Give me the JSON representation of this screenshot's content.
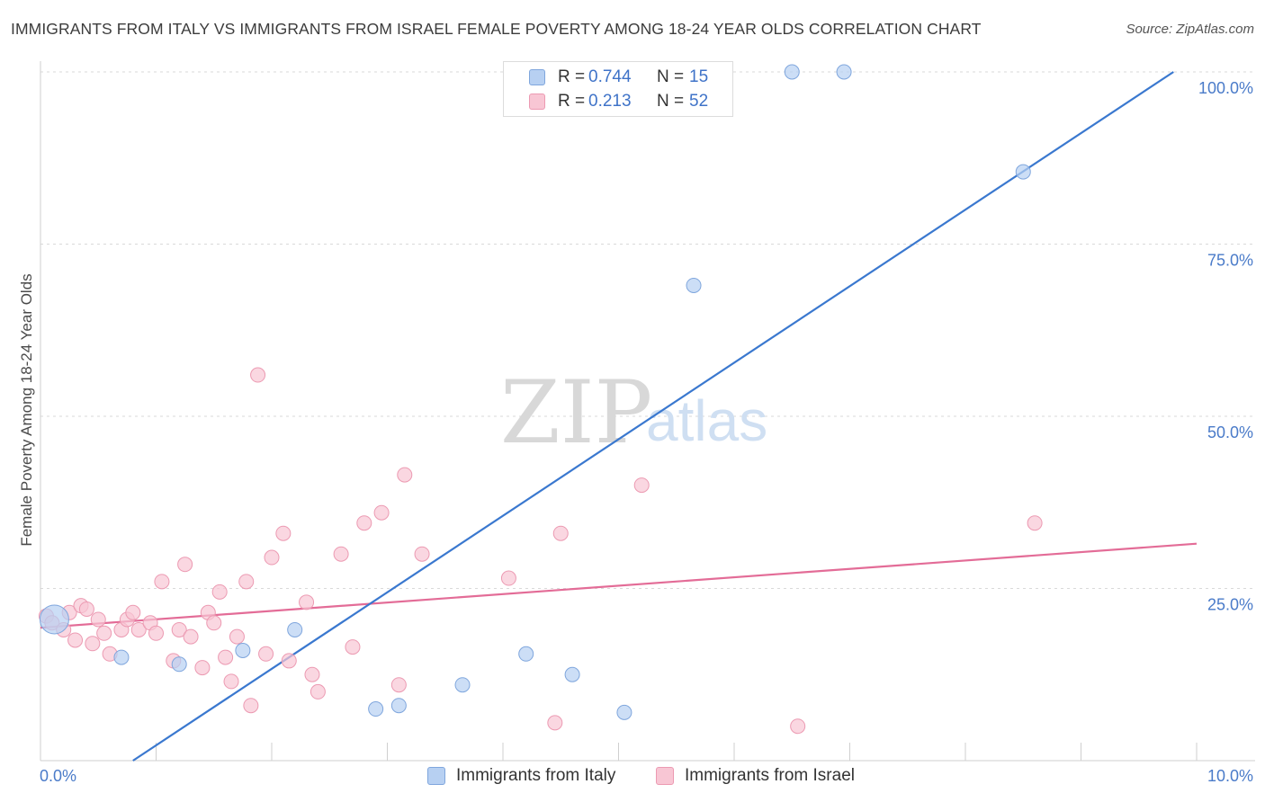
{
  "title": "IMMIGRANTS FROM ITALY VS IMMIGRANTS FROM ISRAEL FEMALE POVERTY AMONG 18-24 YEAR OLDS CORRELATION CHART",
  "source": "Source: ZipAtlas.com",
  "watermark": {
    "zip": "ZIP",
    "atlas": "atlas"
  },
  "legend": {
    "italy": {
      "r_label": "R =",
      "r_value": "0.744",
      "n_label": "N =",
      "n_value": "15"
    },
    "israel": {
      "r_label": "R =",
      "r_value": "0.213",
      "n_label": "N =",
      "n_value": "52"
    }
  },
  "bottom_legend": {
    "italy": "Immigrants from Italy",
    "israel": "Immigrants from Israel"
  },
  "colors": {
    "italy_fill": "#b7d0f2",
    "italy_stroke": "#7fa6dd",
    "italy_line": "#3a78cf",
    "israel_fill": "#f8c6d4",
    "israel_stroke": "#ec9ab2",
    "israel_line": "#e36c97",
    "grid": "#d9d9d9",
    "tick_text": "#4a7bc9"
  },
  "chart_data": {
    "type": "scatter",
    "title": "IMMIGRANTS FROM ITALY VS IMMIGRANTS FROM ISRAEL FEMALE POVERTY AMONG 18-24 YEAR OLDS CORRELATION CHART",
    "xlabel": "",
    "ylabel": "Female Poverty Among 18-24 Year Olds",
    "xlim": [
      0,
      10
    ],
    "ylim": [
      0,
      100
    ],
    "x_tick_labels": [
      {
        "value": 0,
        "label": "0.0%"
      },
      {
        "value": 10,
        "label": "10.0%"
      }
    ],
    "y_tick_labels": [
      {
        "value": 25,
        "label": "25.0%"
      },
      {
        "value": 50,
        "label": "50.0%"
      },
      {
        "value": 75,
        "label": "75.0%"
      },
      {
        "value": 100,
        "label": "100.0%"
      }
    ],
    "series": [
      {
        "name": "Immigrants from Italy",
        "color": "#b7d0f2",
        "points": [
          {
            "x": 0.12,
            "y": 20.5,
            "big": true
          },
          {
            "x": 0.7,
            "y": 15.0
          },
          {
            "x": 1.2,
            "y": 14.0
          },
          {
            "x": 1.75,
            "y": 16.0
          },
          {
            "x": 2.2,
            "y": 19.0
          },
          {
            "x": 2.9,
            "y": 7.5
          },
          {
            "x": 3.1,
            "y": 8.0
          },
          {
            "x": 3.65,
            "y": 11.0
          },
          {
            "x": 4.2,
            "y": 15.5
          },
          {
            "x": 4.6,
            "y": 12.5
          },
          {
            "x": 5.05,
            "y": 7.0
          },
          {
            "x": 5.65,
            "y": 69.0
          },
          {
            "x": 6.5,
            "y": 100.0
          },
          {
            "x": 6.95,
            "y": 100.0
          },
          {
            "x": 8.5,
            "y": 85.5
          }
        ],
        "trend": {
          "x1": 0.8,
          "y1": 0.0,
          "x2": 9.8,
          "y2": 100.0
        }
      },
      {
        "name": "Immigrants from Israel",
        "color": "#f8c6d4",
        "points": [
          {
            "x": 0.05,
            "y": 21.0
          },
          {
            "x": 0.1,
            "y": 20.0
          },
          {
            "x": 0.2,
            "y": 19.0
          },
          {
            "x": 0.25,
            "y": 21.5
          },
          {
            "x": 0.3,
            "y": 17.5
          },
          {
            "x": 0.35,
            "y": 22.5
          },
          {
            "x": 0.4,
            "y": 22.0
          },
          {
            "x": 0.45,
            "y": 17.0
          },
          {
            "x": 0.5,
            "y": 20.5
          },
          {
            "x": 0.55,
            "y": 18.5
          },
          {
            "x": 0.6,
            "y": 15.5
          },
          {
            "x": 0.7,
            "y": 19.0
          },
          {
            "x": 0.75,
            "y": 20.5
          },
          {
            "x": 0.8,
            "y": 21.5
          },
          {
            "x": 0.85,
            "y": 19.0
          },
          {
            "x": 0.95,
            "y": 20.0
          },
          {
            "x": 1.0,
            "y": 18.5
          },
          {
            "x": 1.05,
            "y": 26.0
          },
          {
            "x": 1.15,
            "y": 14.5
          },
          {
            "x": 1.2,
            "y": 19.0
          },
          {
            "x": 1.25,
            "y": 28.5
          },
          {
            "x": 1.3,
            "y": 18.0
          },
          {
            "x": 1.4,
            "y": 13.5
          },
          {
            "x": 1.45,
            "y": 21.5
          },
          {
            "x": 1.5,
            "y": 20.0
          },
          {
            "x": 1.55,
            "y": 24.5
          },
          {
            "x": 1.6,
            "y": 15.0
          },
          {
            "x": 1.65,
            "y": 11.5
          },
          {
            "x": 1.7,
            "y": 18.0
          },
          {
            "x": 1.78,
            "y": 26.0
          },
          {
            "x": 1.82,
            "y": 8.0
          },
          {
            "x": 1.88,
            "y": 56.0
          },
          {
            "x": 1.95,
            "y": 15.5
          },
          {
            "x": 2.0,
            "y": 29.5
          },
          {
            "x": 2.1,
            "y": 33.0
          },
          {
            "x": 2.15,
            "y": 14.5
          },
          {
            "x": 2.3,
            "y": 23.0
          },
          {
            "x": 2.35,
            "y": 12.5
          },
          {
            "x": 2.4,
            "y": 10.0
          },
          {
            "x": 2.6,
            "y": 30.0
          },
          {
            "x": 2.7,
            "y": 16.5
          },
          {
            "x": 2.8,
            "y": 34.5
          },
          {
            "x": 2.95,
            "y": 36.0
          },
          {
            "x": 3.1,
            "y": 11.0
          },
          {
            "x": 3.15,
            "y": 41.5
          },
          {
            "x": 3.3,
            "y": 30.0
          },
          {
            "x": 4.05,
            "y": 26.5
          },
          {
            "x": 4.45,
            "y": 5.5
          },
          {
            "x": 4.5,
            "y": 33.0
          },
          {
            "x": 5.2,
            "y": 40.0
          },
          {
            "x": 6.55,
            "y": 5.0
          },
          {
            "x": 8.6,
            "y": 34.5
          }
        ],
        "trend": {
          "x1": 0.0,
          "y1": 19.3,
          "x2": 10.0,
          "y2": 31.5
        }
      }
    ]
  }
}
